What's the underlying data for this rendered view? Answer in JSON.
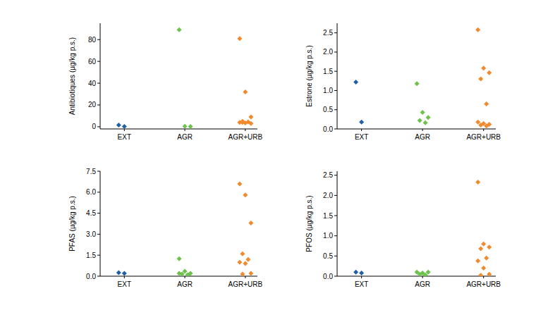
{
  "chart_data": [
    {
      "type": "scatter",
      "y_label": "Antibiotiques (µg/kg p.s.)",
      "categories": [
        "EXT",
        "AGR",
        "AGR+URB"
      ],
      "values": [
        [
          1.5,
          0.3
        ],
        [
          89,
          0.5,
          0.2
        ],
        [
          81,
          32,
          9,
          5,
          4.5,
          4,
          3.5,
          3,
          4
        ]
      ],
      "colors": [
        "#1f5fa8",
        "#6cc24a",
        "#f08a2c"
      ],
      "marker": "diamond",
      "ylim": [
        -2,
        95
      ],
      "yticks": [
        0,
        20,
        40,
        60,
        80
      ]
    },
    {
      "type": "scatter",
      "y_label": "Estrone (µg/kg p.s.)",
      "categories": [
        "EXT",
        "AGR",
        "AGR+URB"
      ],
      "values": [
        [
          1.22,
          0.18
        ],
        [
          1.18,
          0.43,
          0.3,
          0.22,
          0.16
        ],
        [
          2.58,
          1.58,
          1.46,
          1.3,
          0.65,
          0.18,
          0.14,
          0.12,
          0.1,
          0.08
        ]
      ],
      "colors": [
        "#1f5fa8",
        "#6cc24a",
        "#f08a2c"
      ],
      "marker": "diamond",
      "ylim": [
        0,
        2.75
      ],
      "yticks": [
        {
          "value": 0,
          "label": "0.0"
        },
        {
          "value": 0.5,
          "label": "0.5"
        },
        {
          "value": 1,
          "label": "1.0"
        },
        {
          "value": 1.5,
          "label": "1.5"
        },
        {
          "value": 2,
          "label": "2.0"
        },
        {
          "value": 2.5,
          "label": "2.5"
        }
      ]
    },
    {
      "type": "scatter",
      "y_label": "PFAS (µg/kg p.s.)",
      "categories": [
        "EXT",
        "AGR",
        "AGR+URB"
      ],
      "values": [
        [
          0.25,
          0.2
        ],
        [
          1.25,
          0.35,
          0.2,
          0.15,
          0.1,
          0.2
        ],
        [
          6.6,
          5.8,
          3.8,
          1.6,
          1.2,
          1.0,
          0.9,
          0.2,
          0.15
        ]
      ],
      "colors": [
        "#1f5fa8",
        "#6cc24a",
        "#f08a2c"
      ],
      "marker": "diamond",
      "ylim": [
        0,
        7.5
      ],
      "yticks": [
        {
          "value": 0,
          "label": "0.0"
        },
        {
          "value": 1.5,
          "label": "1.5"
        },
        {
          "value": 3,
          "label": "3.0"
        },
        {
          "value": 4.5,
          "label": "4.5"
        },
        {
          "value": 6,
          "label": "6.0"
        },
        {
          "value": 7.5,
          "label": "7.5"
        }
      ]
    },
    {
      "type": "scatter",
      "y_label": "PFOS (µg/kg p.s.)",
      "categories": [
        "EXT",
        "AGR",
        "AGR+URB"
      ],
      "values": [
        [
          0.1,
          0.08
        ],
        [
          0.1,
          0.08,
          0.1,
          0.05,
          0.03
        ],
        [
          2.33,
          0.8,
          0.72,
          0.68,
          0.45,
          0.38,
          0.2,
          0.05,
          0.02
        ]
      ],
      "colors": [
        "#1f5fa8",
        "#6cc24a",
        "#f08a2c"
      ],
      "marker": "diamond",
      "ylim": [
        0,
        2.6
      ],
      "yticks": [
        {
          "value": 0,
          "label": "0.0"
        },
        {
          "value": 0.5,
          "label": "0.5"
        },
        {
          "value": 1,
          "label": "1.0"
        },
        {
          "value": 1.5,
          "label": "1.5"
        },
        {
          "value": 2,
          "label": "2.0"
        },
        {
          "value": 2.5,
          "label": "2.5"
        }
      ]
    }
  ]
}
